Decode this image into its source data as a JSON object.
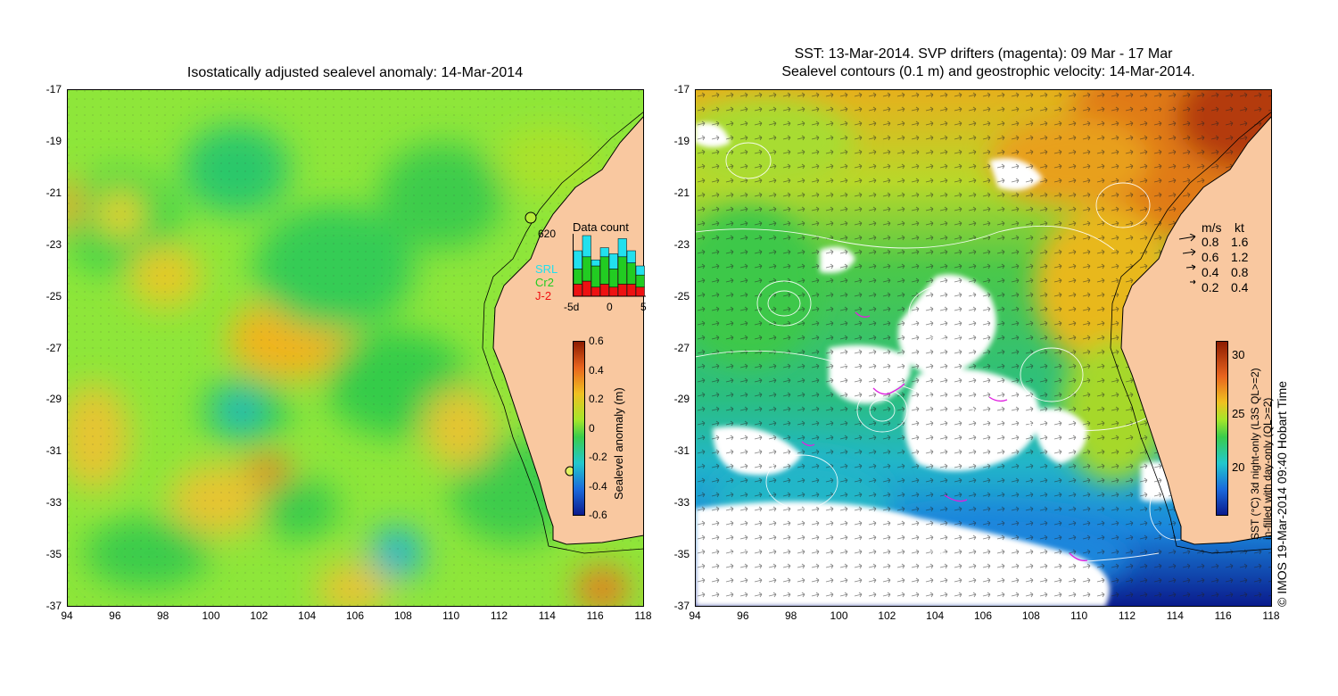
{
  "left_panel": {
    "title": "Isostatically adjusted sealevel anomaly: 14-Mar-2014",
    "y_ticks": [
      "-17",
      "-19",
      "-21",
      "-23",
      "-25",
      "-27",
      "-29",
      "-31",
      "-33",
      "-35",
      "-37"
    ],
    "x_ticks": [
      "94",
      "96",
      "98",
      "100",
      "102",
      "104",
      "106",
      "108",
      "110",
      "112",
      "114",
      "116",
      "118"
    ],
    "tide_gauge_label": "620",
    "data_count": {
      "title": "Data count",
      "legend": [
        {
          "label": "SRL",
          "color": "#22e0ee"
        },
        {
          "label": "Cr2",
          "color": "#22cc22"
        },
        {
          "label": "J-2",
          "color": "#ee1111"
        }
      ],
      "x_ticks": [
        "-5d",
        "0",
        "5"
      ],
      "bars": [
        {
          "j2": 4,
          "cr2": 5,
          "srl": 6
        },
        {
          "j2": 5,
          "cr2": 8,
          "srl": 7
        },
        {
          "j2": 3,
          "cr2": 7,
          "srl": 2
        },
        {
          "j2": 4,
          "cr2": 9,
          "srl": 3
        },
        {
          "j2": 3,
          "cr2": 6,
          "srl": 5
        },
        {
          "j2": 4,
          "cr2": 9,
          "srl": 6
        },
        {
          "j2": 4,
          "cr2": 7,
          "srl": 4
        },
        {
          "j2": 3,
          "cr2": 4,
          "srl": 3
        }
      ]
    },
    "colorbar": {
      "label": "Sealevel anomaly (m)",
      "ticks": [
        "0.6",
        "0.4",
        "0.2",
        "0",
        "-0.2",
        "-0.4",
        "-0.6"
      ]
    }
  },
  "right_panel": {
    "title_line1": "SST: 13-Mar-2014. SVP drifters (magenta): 09 Mar - 17 Mar",
    "title_line2": "Sealevel contours (0.1 m) and geostrophic velocity: 14-Mar-2014.",
    "y_ticks": [
      "-17",
      "-19",
      "-21",
      "-23",
      "-25",
      "-27",
      "-29",
      "-31",
      "-33",
      "-35",
      "-37"
    ],
    "x_ticks": [
      "94",
      "96",
      "98",
      "100",
      "102",
      "104",
      "106",
      "108",
      "110",
      "112",
      "114",
      "116",
      "118"
    ],
    "speed_legend": {
      "header_ms": "m/s",
      "header_kt": "kt",
      "rows": [
        {
          "ms": "0.8",
          "kt": "1.6"
        },
        {
          "ms": "0.6",
          "kt": "1.2"
        },
        {
          "ms": "0.4",
          "kt": "0.8"
        },
        {
          "ms": "0.2",
          "kt": "0.4"
        }
      ]
    },
    "colorbar": {
      "ticks": [
        "30",
        "25",
        "20"
      ],
      "label_line1": "SST (°C) 3d night-only (L3S QL>=2)",
      "label_line2": "in-filled with day-only (QL>=2)"
    },
    "credit": "© IMOS 19-Mar-2014 09:40 Hobart Time"
  },
  "colors": {
    "land": "#f9c8a0",
    "sla_low": "#0a1a8c",
    "sla_mid": "#33cc33",
    "sla_high": "#8b1a00",
    "sst_low": "#0a1a8c",
    "sst_high": "#8b1a00"
  }
}
